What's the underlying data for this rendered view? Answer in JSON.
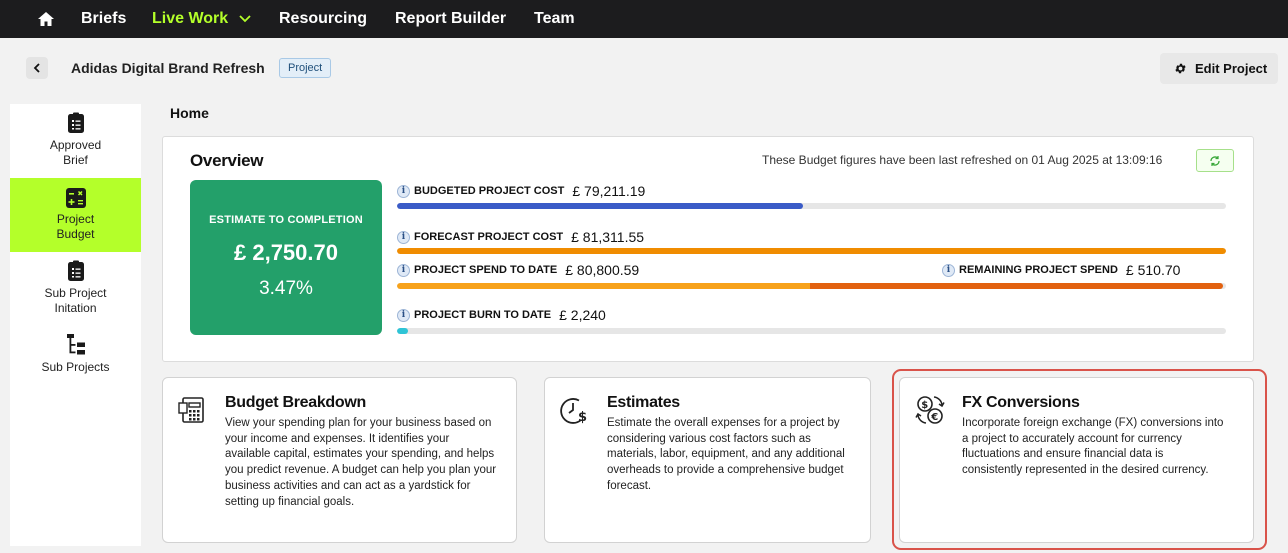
{
  "nav": {
    "items": [
      "Briefs",
      "Live Work",
      "Resourcing",
      "Report Builder",
      "Team"
    ],
    "active": "Live Work"
  },
  "header": {
    "title": "Adidas Digital Brand Refresh",
    "badge": "Project",
    "edit_label": "Edit Project"
  },
  "sidebar": {
    "items": [
      {
        "label": "Approved Brief",
        "icon": "clipboard-list-icon"
      },
      {
        "label": "Project Budget",
        "icon": "calculator-icon"
      },
      {
        "label": "Sub Project Initation",
        "icon": "clipboard-list-icon"
      },
      {
        "label": "Sub Projects",
        "icon": "hierarchy-icon"
      }
    ],
    "active": "Project Budget"
  },
  "main": {
    "section_label": "Home"
  },
  "overview": {
    "title": "Overview",
    "refresh_text": "These Budget figures have been last refreshed on 01 Aug 2025 at 13:09:16",
    "etc": {
      "label": "ESTIMATE TO COMPLETION",
      "amount": "£ 2,750.70",
      "percent": "3.47%"
    },
    "metrics": {
      "budgeted": {
        "label": "BUDGETED PROJECT COST",
        "value": "£ 79,211.19",
        "fill": 0.49
      },
      "forecast": {
        "label": "FORECAST PROJECT COST",
        "value": "£ 81,311.55",
        "fill": 1.0
      },
      "spend": {
        "label": "PROJECT SPEND TO DATE",
        "value": "£ 80,800.59",
        "fill": 0.996
      },
      "remaining": {
        "label": "REMAINING PROJECT SPEND",
        "value": "£ 510.70"
      },
      "burn": {
        "label": "PROJECT BURN TO DATE",
        "value": "£ 2,240",
        "fill": 0.013
      }
    },
    "colors": {
      "budgeted": "#3a5bc7",
      "forecast": "#f08c00",
      "spend": "#f7a21b",
      "remaining": "#e2610f",
      "burn": "#2ec4d6",
      "etc_bg": "#23a06a",
      "accent": "#b4ff2a"
    }
  },
  "cards": [
    {
      "title": "Budget Breakdown",
      "icon": "calculator-sheet-icon",
      "desc": "View your spending plan for your business based on your income and expenses. It identifies your available capital, estimates your spending, and helps you predict revenue. A budget can help you plan your business activities and can act as a yardstick for setting up financial goals."
    },
    {
      "title": "Estimates",
      "icon": "clock-dollar-icon",
      "desc": "Estimate the overall expenses for a project by considering various cost factors such as materials, labor, equipment, and any additional overheads to provide a comprehensive budget forecast."
    },
    {
      "title": "FX Conversions",
      "icon": "currency-exchange-icon",
      "desc": "Incorporate foreign exchange (FX) conversions into a project to accurately account for currency fluctuations and ensure financial data is consistently represented in the desired currency."
    }
  ]
}
